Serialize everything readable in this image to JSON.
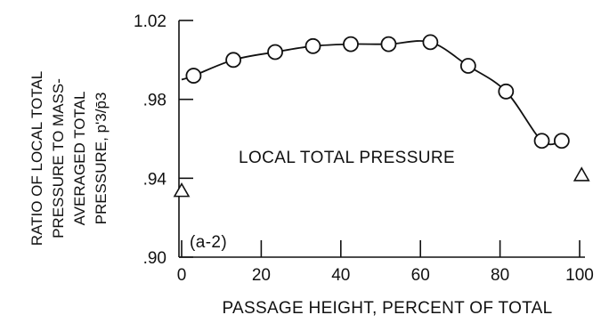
{
  "chart_data": {
    "type": "line",
    "xlabel": "PASSAGE HEIGHT, PERCENT OF TOTAL",
    "ylabel_lines": [
      "RATIO OF LOCAL TOTAL",
      "PRESSURE TO MASS-",
      "AVERAGED TOTAL",
      "PRESSURE, p'3/p̄3"
    ],
    "xlim": [
      0,
      100
    ],
    "ylim": [
      0.9,
      1.02
    ],
    "x_ticks": [
      0,
      20,
      40,
      60,
      80,
      100
    ],
    "x_tick_labels": [
      "0",
      "20",
      "40",
      "60",
      "80",
      "100"
    ],
    "y_ticks": [
      0.9,
      0.94,
      0.98,
      1.02
    ],
    "y_tick_labels": [
      ".90",
      ".94",
      ".98",
      "1.02"
    ],
    "grid": false,
    "annotations": [
      "LOCAL TOTAL PRESSURE",
      "(a-2)"
    ],
    "series": [
      {
        "marker": "circle",
        "line": "smooth",
        "x": [
          3,
          13,
          23.5,
          33,
          42.5,
          52,
          62.5,
          72,
          81.5,
          90.5,
          95.5
        ],
        "y": [
          0.992,
          1.0,
          1.004,
          1.007,
          1.008,
          1.008,
          1.009,
          0.997,
          0.984,
          0.959,
          0.959
        ],
        "curve_x": [
          0,
          3,
          13,
          23.5,
          33,
          42.5,
          52,
          62.5,
          72,
          81.5,
          90.5,
          95.5
        ],
        "curve_y": [
          0.99,
          0.992,
          1.0,
          1.004,
          1.007,
          1.008,
          1.008,
          1.009,
          0.997,
          0.984,
          0.959,
          0.959
        ]
      },
      {
        "marker": "triangle",
        "line": "none",
        "x": [
          0,
          100.5
        ],
        "y": [
          0.934,
          0.942
        ]
      }
    ]
  }
}
